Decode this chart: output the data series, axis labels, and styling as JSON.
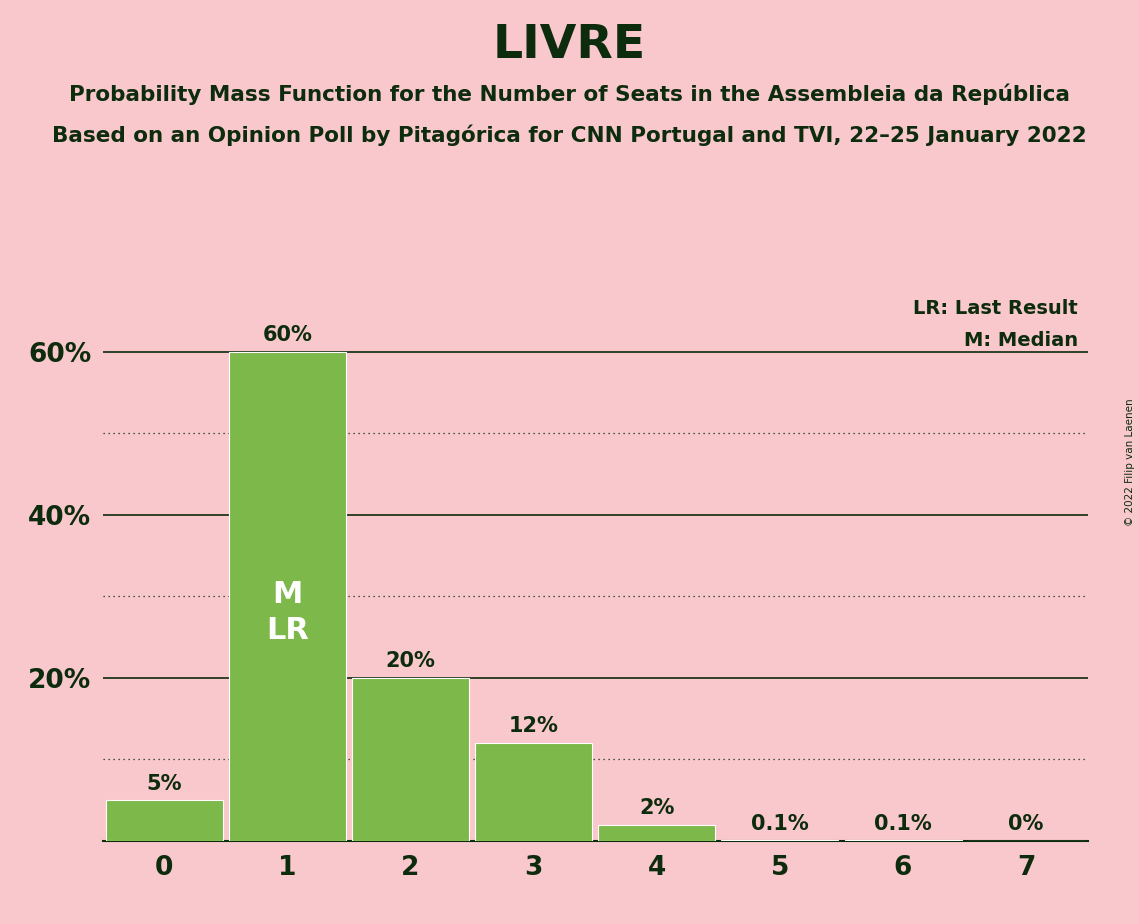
{
  "title": "LIVRE",
  "subtitle1": "Probability Mass Function for the Number of Seats in the Assembleia da República",
  "subtitle2": "Based on an Opinion Poll by Pitagórica for CNN Portugal and TVI, 22–25 January 2022",
  "copyright": "© 2022 Filip van Laenen",
  "categories": [
    0,
    1,
    2,
    3,
    4,
    5,
    6,
    7
  ],
  "values": [
    5,
    60,
    20,
    12,
    2,
    0.1,
    0.1,
    0
  ],
  "labels": [
    "5%",
    "60%",
    "20%",
    "12%",
    "2%",
    "0.1%",
    "0.1%",
    "0%"
  ],
  "bar_color": "#7db84a",
  "background_color": "#f9c8cc",
  "text_color": "#0d2b0d",
  "legend_lr": "LR: Last Result",
  "legend_m": "M: Median",
  "dotted_yticks": [
    10,
    30,
    50
  ],
  "solid_yticks": [
    20,
    40,
    60
  ],
  "ylim_max": 68,
  "xlim": [
    -0.5,
    7.5
  ]
}
